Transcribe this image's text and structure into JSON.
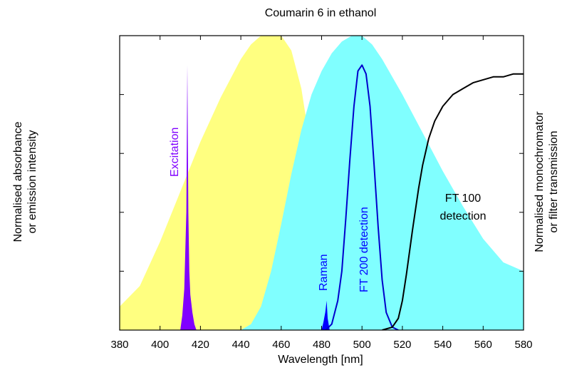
{
  "chart_data": {
    "type": "area",
    "title": "Coumarin 6 in ethanol",
    "xlabel": "Wavelength [nm]",
    "ylabel_left": [
      "Normalised absorbance",
      "or emission intensity"
    ],
    "ylabel_right": [
      "Normalised monochromator",
      "or filter transmission"
    ],
    "xlim": [
      380,
      580
    ],
    "ylim": [
      0,
      1
    ],
    "x_ticks": [
      380,
      400,
      420,
      440,
      460,
      480,
      500,
      520,
      540,
      560,
      580
    ],
    "y_tick_count": 5,
    "series": [
      {
        "kind": "filled",
        "color": "#ffff80",
        "x": [
          380,
          390,
          400,
          410,
          420,
          430,
          440,
          445,
          450,
          455,
          460,
          465,
          470,
          475,
          480,
          485,
          490,
          500
        ],
        "y": [
          0.08,
          0.15,
          0.3,
          0.47,
          0.64,
          0.79,
          0.92,
          0.97,
          1.0,
          1.0,
          1.0,
          0.95,
          0.82,
          0.6,
          0.3,
          0.1,
          0.02,
          0.0
        ]
      },
      {
        "kind": "filled",
        "color": "#80ffff",
        "x": [
          440,
          445,
          450,
          455,
          460,
          465,
          470,
          475,
          480,
          485,
          490,
          495,
          500,
          505,
          510,
          520,
          530,
          540,
          550,
          560,
          570,
          580
        ],
        "y": [
          0.0,
          0.02,
          0.08,
          0.2,
          0.36,
          0.53,
          0.68,
          0.8,
          0.88,
          0.94,
          0.98,
          1.0,
          1.0,
          0.97,
          0.92,
          0.8,
          0.67,
          0.54,
          0.42,
          0.31,
          0.23,
          0.2
        ]
      },
      {
        "kind": "filled",
        "color": "#8000ff",
        "x": [
          410,
          411,
          412,
          413,
          413.5,
          414,
          414.5,
          415,
          416,
          417,
          418
        ],
        "y": [
          0.0,
          0.05,
          0.14,
          0.4,
          0.9,
          0.4,
          0.2,
          0.12,
          0.06,
          0.02,
          0.0
        ]
      },
      {
        "kind": "filled",
        "color": "#0000ff",
        "x": [
          480,
          481,
          481.8,
          482.5,
          483,
          484
        ],
        "y": [
          0.0,
          0.03,
          0.06,
          0.1,
          0.04,
          0.0
        ]
      },
      {
        "kind": "line",
        "color": "#0000cc",
        "x": [
          482,
          485,
          488,
          490,
          492,
          494,
          496,
          498,
          500,
          502,
          504,
          506,
          508,
          510,
          512,
          515,
          518
        ],
        "y": [
          0.0,
          0.02,
          0.1,
          0.2,
          0.38,
          0.58,
          0.76,
          0.88,
          0.9,
          0.87,
          0.76,
          0.56,
          0.35,
          0.17,
          0.06,
          0.01,
          0.0
        ]
      },
      {
        "kind": "line",
        "color": "#000000",
        "x": [
          510,
          515,
          518,
          520,
          522,
          525,
          528,
          530,
          533,
          536,
          540,
          545,
          550,
          555,
          560,
          565,
          570,
          575,
          580
        ],
        "y": [
          0.0,
          0.01,
          0.04,
          0.1,
          0.19,
          0.34,
          0.48,
          0.56,
          0.65,
          0.71,
          0.76,
          0.8,
          0.82,
          0.84,
          0.85,
          0.86,
          0.86,
          0.87,
          0.87
        ]
      }
    ],
    "annotations": {
      "excitation": "Excitation",
      "raman": "Raman",
      "ft200": "FT 200 detection",
      "ft100_line1": "FT 100",
      "ft100_line2": "detection"
    }
  }
}
